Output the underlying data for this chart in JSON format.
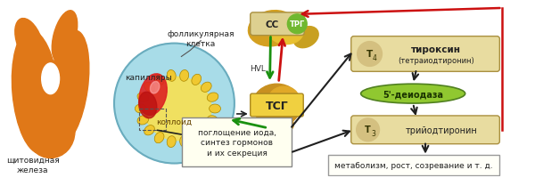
{
  "bg_color": "#ffffff",
  "fig_width": 6.0,
  "fig_height": 2.01,
  "dpi": 100,
  "thyroid_color": "#e07818",
  "follicle_bg": "#a8dce8",
  "follicle_border": "#6aacbe",
  "follicle_ring_color": "#f0c830",
  "colloid_color": "#f0e060",
  "capillary_color": "#cc2020",
  "arrow_green": "#1a9010",
  "arrow_red": "#cc1010",
  "arrow_black": "#202020",
  "label_cc": "СС",
  "label_trg": "ТРГ",
  "label_hvl": "HVL",
  "label_tsg": "ТСГ",
  "label_follicular": "фолликулярная\nклетка",
  "label_capillary": "капилляры",
  "label_colloid": "коллоид",
  "label_thyroid": "щитовидная\nжелеза",
  "label_synth": "поглощение иода,\nсинтез гормонов\nи их секреция",
  "label_t4_text1": "тироксин",
  "label_t4_text2": "(тетраиодтиронин)",
  "label_t4_sub": "T4",
  "label_deio": "5'-деиодаза",
  "label_t3": "трийодтиронин",
  "label_t3_sub": "T3",
  "label_metab": "метаболизм, рост, созревание и т. д."
}
